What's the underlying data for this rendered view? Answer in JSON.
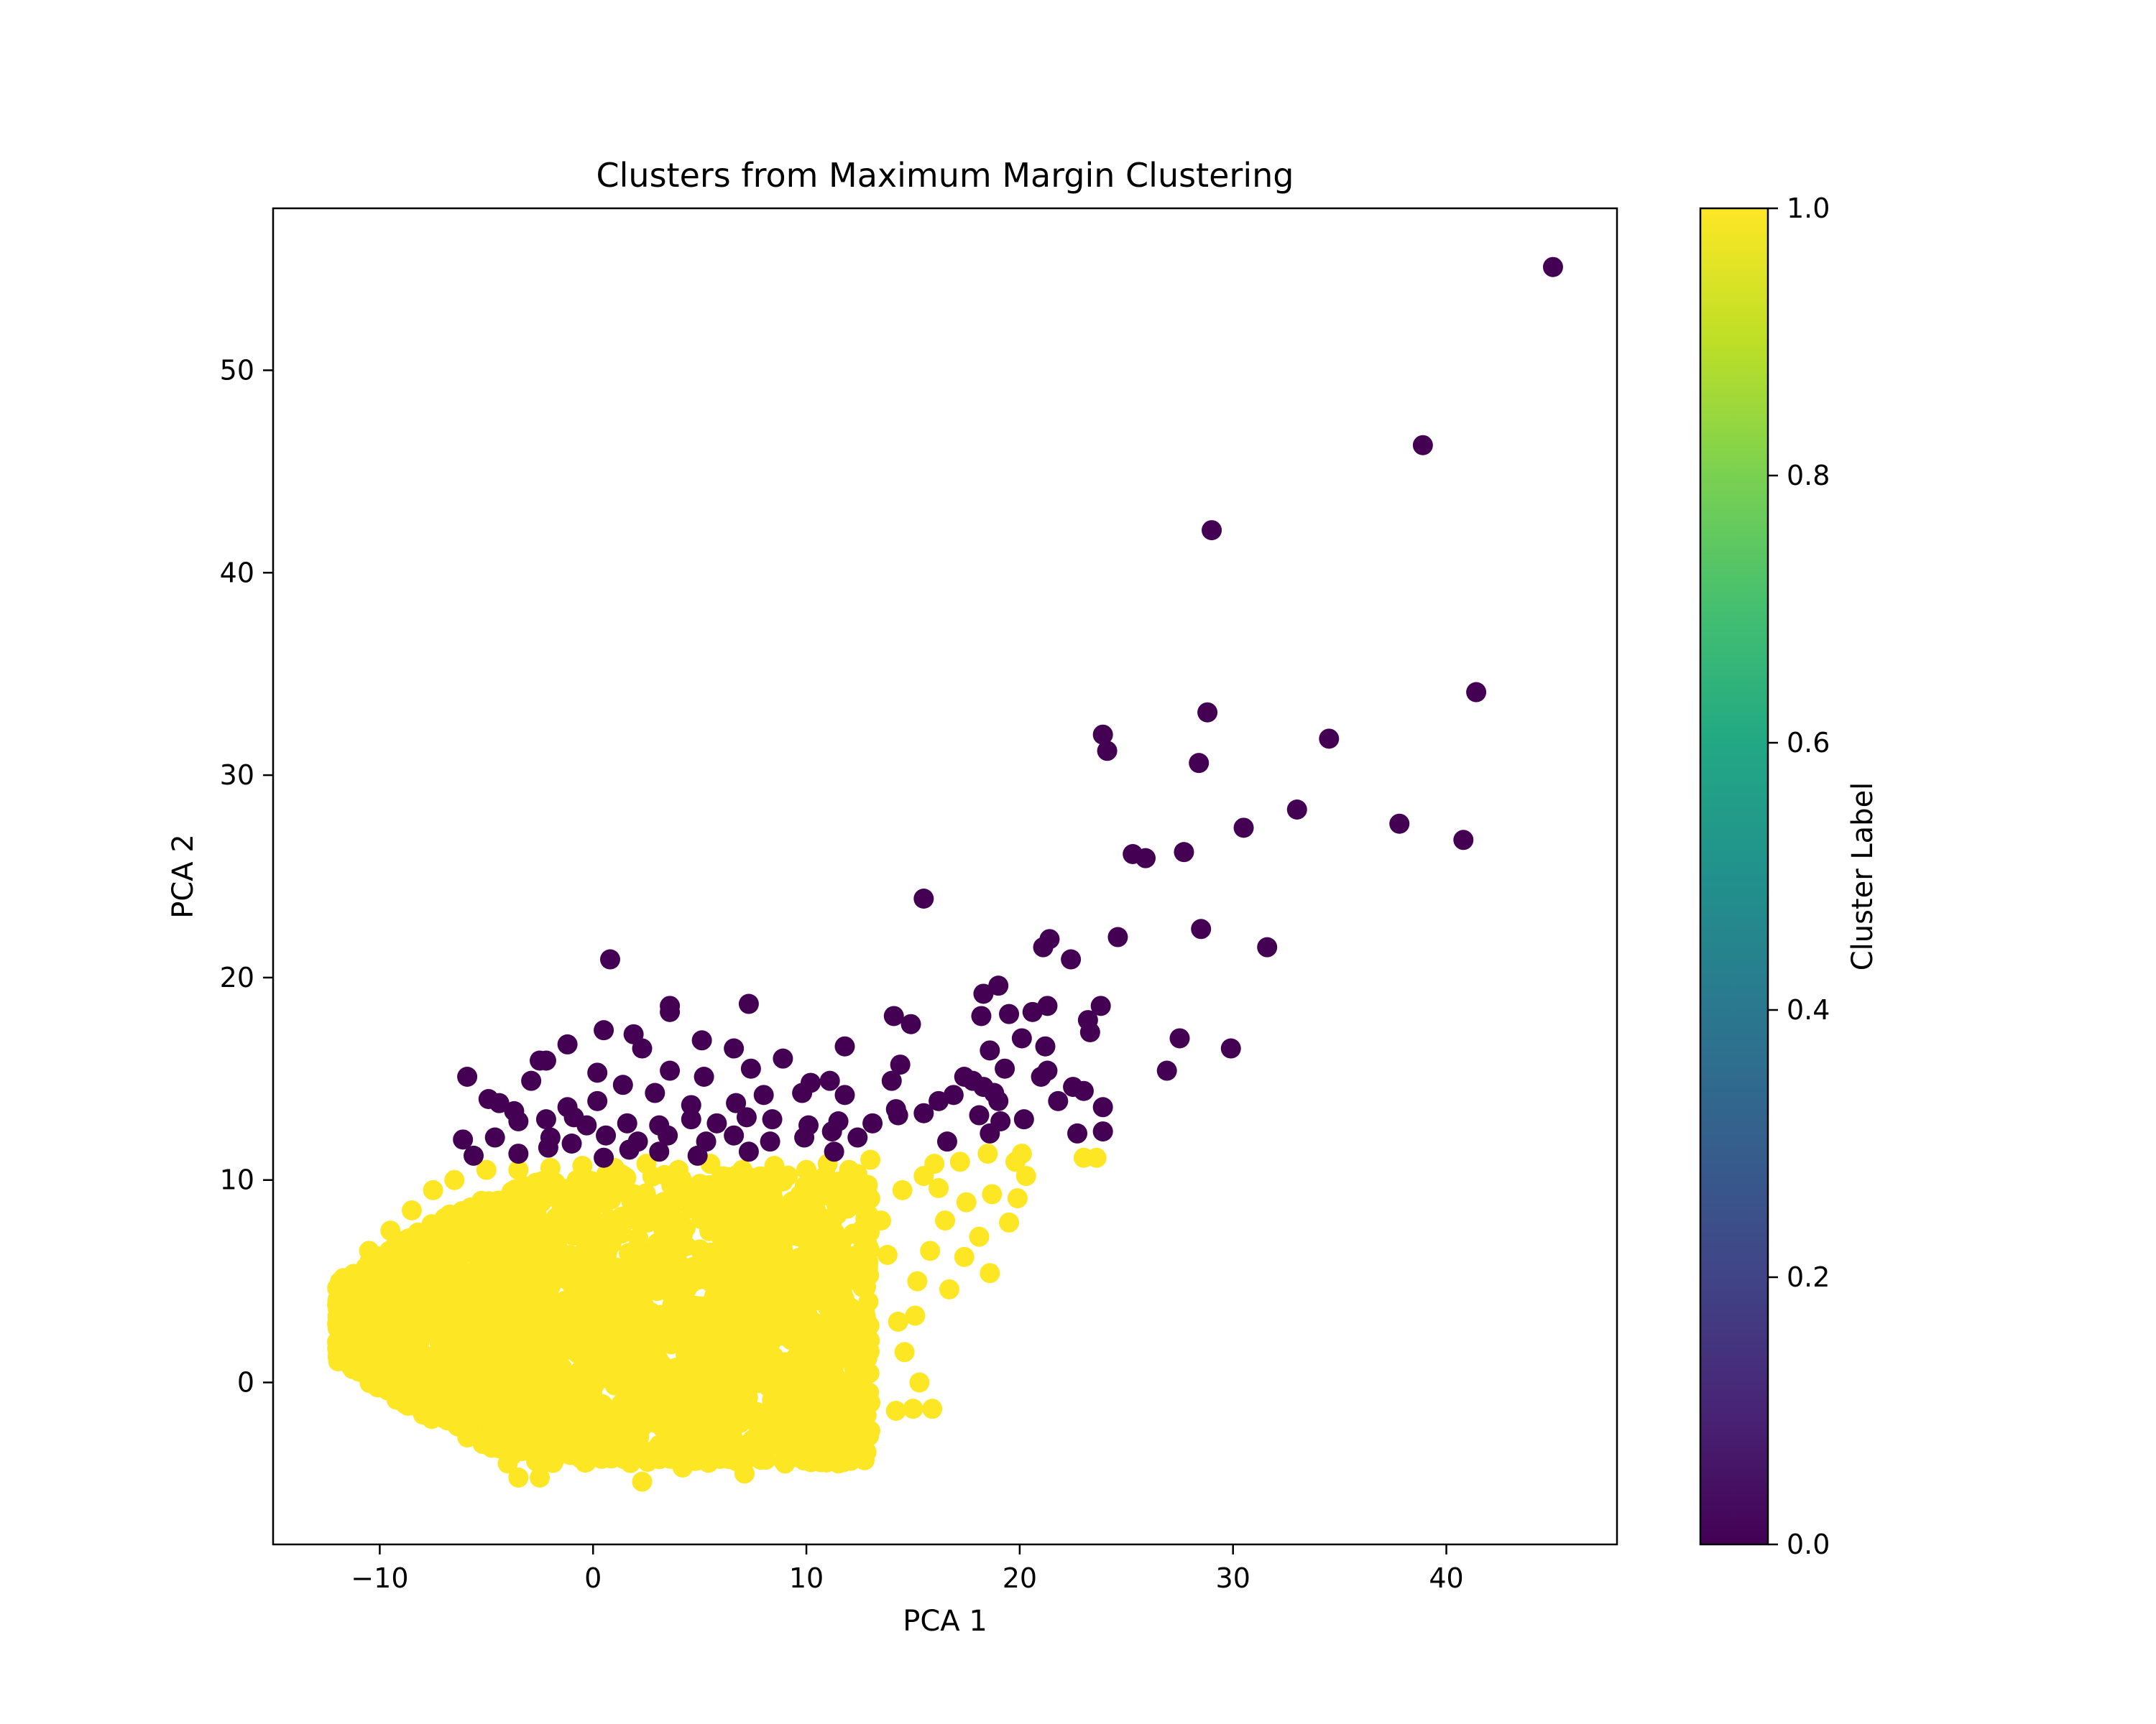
{
  "chart_data": {
    "type": "scatter",
    "title": "Clusters from Maximum Margin Clustering",
    "xlabel": "PCA 1",
    "ylabel": "PCA 2",
    "xlim": [
      -15,
      48
    ],
    "ylim": [
      -8,
      58
    ],
    "xticks": [
      -10,
      0,
      10,
      20,
      30,
      40
    ],
    "xtick_labels": [
      "−10",
      "0",
      "10",
      "20",
      "30",
      "40"
    ],
    "yticks": [
      0,
      10,
      20,
      30,
      40,
      50
    ],
    "ytick_labels": [
      "0",
      "10",
      "20",
      "30",
      "40",
      "50"
    ],
    "grid": false,
    "colormap": "viridis",
    "colorbar": {
      "label": "Cluster Label",
      "range": [
        0.0,
        1.0
      ],
      "ticks": [
        0.0,
        0.2,
        0.4,
        0.6,
        0.8,
        1.0
      ],
      "tick_labels": [
        "0.0",
        "0.2",
        "0.4",
        "0.6",
        "0.8",
        "1.0"
      ]
    },
    "series": [
      {
        "label_value": 0,
        "color": "#440154",
        "points": [
          [
            45.0,
            55.1
          ],
          [
            38.9,
            46.3
          ],
          [
            29.0,
            42.1
          ],
          [
            41.4,
            34.1
          ],
          [
            28.8,
            33.1
          ],
          [
            34.5,
            31.8
          ],
          [
            23.9,
            32.0
          ],
          [
            24.1,
            31.2
          ],
          [
            28.4,
            30.6
          ],
          [
            33.0,
            28.3
          ],
          [
            30.5,
            27.4
          ],
          [
            37.8,
            27.6
          ],
          [
            40.8,
            26.8
          ],
          [
            27.7,
            26.2
          ],
          [
            25.3,
            26.1
          ],
          [
            25.9,
            25.9
          ],
          [
            15.5,
            23.9
          ],
          [
            24.6,
            22.0
          ],
          [
            28.5,
            22.4
          ],
          [
            31.6,
            21.5
          ],
          [
            21.1,
            21.5
          ],
          [
            21.4,
            21.9
          ],
          [
            22.4,
            20.9
          ],
          [
            0.8,
            20.9
          ],
          [
            19.0,
            19.6
          ],
          [
            18.3,
            19.2
          ],
          [
            23.8,
            18.6
          ],
          [
            21.3,
            18.6
          ],
          [
            7.3,
            18.7
          ],
          [
            3.6,
            18.6
          ],
          [
            3.6,
            18.3
          ],
          [
            14.1,
            18.1
          ],
          [
            14.9,
            17.7
          ],
          [
            20.6,
            18.3
          ],
          [
            19.5,
            18.2
          ],
          [
            18.2,
            18.1
          ],
          [
            23.2,
            17.9
          ],
          [
            23.3,
            17.3
          ],
          [
            20.1,
            17.0
          ],
          [
            27.5,
            17.0
          ],
          [
            0.5,
            17.4
          ],
          [
            1.9,
            17.2
          ],
          [
            2.3,
            16.5
          ],
          [
            5.1,
            16.9
          ],
          [
            6.6,
            16.5
          ],
          [
            11.8,
            16.6
          ],
          [
            -1.2,
            16.7
          ],
          [
            29.9,
            16.5
          ],
          [
            21.2,
            16.6
          ],
          [
            18.6,
            16.4
          ],
          [
            8.9,
            16.0
          ],
          [
            14.4,
            15.7
          ],
          [
            19.3,
            15.5
          ],
          [
            21.3,
            15.4
          ],
          [
            21.0,
            15.1
          ],
          [
            26.9,
            15.4
          ],
          [
            -2.5,
            15.9
          ],
          [
            0.2,
            15.3
          ],
          [
            3.6,
            15.4
          ],
          [
            5.2,
            15.1
          ],
          [
            7.4,
            15.5
          ],
          [
            -5.9,
            15.1
          ],
          [
            -2.9,
            14.9
          ],
          [
            1.4,
            14.7
          ],
          [
            10.2,
            14.8
          ],
          [
            11.1,
            14.9
          ],
          [
            14.0,
            14.9
          ],
          [
            17.4,
            15.1
          ],
          [
            17.8,
            14.9
          ],
          [
            16.9,
            14.2
          ],
          [
            18.3,
            14.6
          ],
          [
            18.8,
            14.3
          ],
          [
            22.5,
            14.6
          ],
          [
            23.0,
            14.4
          ],
          [
            -4.9,
            14.0
          ],
          [
            -4.4,
            13.8
          ],
          [
            -3.7,
            13.4
          ],
          [
            -1.2,
            13.6
          ],
          [
            0.2,
            13.9
          ],
          [
            2.9,
            14.3
          ],
          [
            4.6,
            13.7
          ],
          [
            6.7,
            13.8
          ],
          [
            8.0,
            14.2
          ],
          [
            9.8,
            14.3
          ],
          [
            11.8,
            14.2
          ],
          [
            14.2,
            13.5
          ],
          [
            16.2,
            13.9
          ],
          [
            15.5,
            13.3
          ],
          [
            18.1,
            13.2
          ],
          [
            19.0,
            13.9
          ],
          [
            20.2,
            13.0
          ],
          [
            21.8,
            13.9
          ],
          [
            23.9,
            13.6
          ],
          [
            -3.5,
            12.9
          ],
          [
            -2.2,
            13.0
          ],
          [
            -0.3,
            12.7
          ],
          [
            1.6,
            12.8
          ],
          [
            3.1,
            12.7
          ],
          [
            4.6,
            13.0
          ],
          [
            5.8,
            12.8
          ],
          [
            7.2,
            13.1
          ],
          [
            8.4,
            13.0
          ],
          [
            10.1,
            12.7
          ],
          [
            11.5,
            12.9
          ],
          [
            13.1,
            12.8
          ],
          [
            14.3,
            13.2
          ],
          [
            19.1,
            12.9
          ],
          [
            -6.1,
            12.0
          ],
          [
            -4.6,
            12.1
          ],
          [
            -2.0,
            12.1
          ],
          [
            -1.0,
            11.8
          ],
          [
            0.6,
            12.2
          ],
          [
            2.1,
            11.9
          ],
          [
            3.5,
            12.2
          ],
          [
            5.3,
            11.9
          ],
          [
            6.6,
            12.2
          ],
          [
            8.3,
            11.9
          ],
          [
            9.9,
            12.1
          ],
          [
            11.2,
            12.4
          ],
          [
            12.4,
            12.1
          ],
          [
            16.6,
            11.9
          ],
          [
            18.6,
            12.3
          ],
          [
            22.7,
            12.3
          ],
          [
            23.9,
            12.4
          ],
          [
            -5.6,
            11.2
          ],
          [
            -3.5,
            11.3
          ],
          [
            -2.1,
            11.6
          ],
          [
            0.5,
            11.1
          ],
          [
            1.7,
            11.5
          ],
          [
            3.1,
            11.4
          ],
          [
            4.9,
            11.2
          ],
          [
            7.3,
            11.4
          ],
          [
            11.3,
            11.4
          ],
          [
            -2.2,
            15.9
          ],
          [
            -0.9,
            13.1
          ]
        ]
      },
      {
        "label_value": 1,
        "color": "#fde725",
        "points": [
          [
            -12.0,
            2.0
          ],
          [
            -11.5,
            3.5
          ],
          [
            -11.2,
            1.0
          ],
          [
            -10.8,
            5.0
          ],
          [
            -10.5,
            6.5
          ],
          [
            -10.0,
            0.0
          ],
          [
            -9.5,
            7.5
          ],
          [
            -9.0,
            -0.5
          ],
          [
            -8.5,
            8.5
          ],
          [
            -8.0,
            -1.0
          ],
          [
            -7.5,
            9.5
          ],
          [
            -7.0,
            -1.5
          ],
          [
            -6.5,
            10.0
          ],
          [
            -6.0,
            -2.0
          ],
          [
            -5.0,
            10.5
          ],
          [
            -5.0,
            -3.0
          ],
          [
            -4.0,
            -4.0
          ],
          [
            -3.5,
            -4.7
          ],
          [
            -2.5,
            -4.7
          ],
          [
            -1.0,
            -3.5
          ],
          [
            0.5,
            -3.0
          ],
          [
            2.3,
            -4.9
          ],
          [
            4.2,
            -4.2
          ],
          [
            5.5,
            -3.5
          ],
          [
            7.1,
            -4.5
          ],
          [
            8.0,
            -3.0
          ],
          [
            9.0,
            -4.0
          ],
          [
            10.5,
            -3.5
          ],
          [
            11.5,
            -4.0
          ],
          [
            12.3,
            -3.0
          ],
          [
            13.0,
            -1.0
          ],
          [
            14.2,
            -1.4
          ],
          [
            15.0,
            -1.3
          ],
          [
            15.9,
            -1.3
          ],
          [
            15.3,
            0.0
          ],
          [
            14.6,
            1.5
          ],
          [
            15.1,
            3.3
          ],
          [
            14.3,
            3.0
          ],
          [
            15.2,
            5.0
          ],
          [
            16.7,
            4.6
          ],
          [
            15.8,
            6.5
          ],
          [
            17.4,
            6.2
          ],
          [
            16.5,
            8.0
          ],
          [
            18.1,
            7.2
          ],
          [
            19.5,
            7.9
          ],
          [
            18.6,
            5.4
          ],
          [
            17.5,
            8.9
          ],
          [
            18.7,
            9.3
          ],
          [
            19.9,
            9.1
          ],
          [
            20.3,
            10.2
          ],
          [
            19.8,
            10.9
          ],
          [
            20.1,
            11.3
          ],
          [
            18.5,
            11.3
          ],
          [
            17.2,
            10.9
          ],
          [
            16.0,
            10.8
          ],
          [
            15.5,
            10.2
          ],
          [
            14.5,
            9.5
          ],
          [
            13.5,
            8.0
          ],
          [
            13.0,
            11.0
          ],
          [
            12.0,
            10.5
          ],
          [
            11.0,
            10.8
          ],
          [
            10.0,
            10.5
          ],
          [
            8.5,
            10.7
          ],
          [
            7.0,
            10.5
          ],
          [
            5.5,
            10.8
          ],
          [
            4.0,
            10.5
          ],
          [
            2.5,
            10.8
          ],
          [
            1.0,
            10.6
          ],
          [
            -0.5,
            10.7
          ],
          [
            -2.0,
            10.6
          ],
          [
            -3.5,
            10.5
          ],
          [
            23.0,
            11.1
          ],
          [
            23.6,
            11.1
          ],
          [
            16.2,
            9.6
          ],
          [
            13.8,
            6.3
          ]
        ]
      }
    ],
    "dense_region": {
      "series_label_value": 1,
      "x_range": [
        -12,
        13
      ],
      "y_range": [
        -4,
        10.5
      ]
    }
  }
}
